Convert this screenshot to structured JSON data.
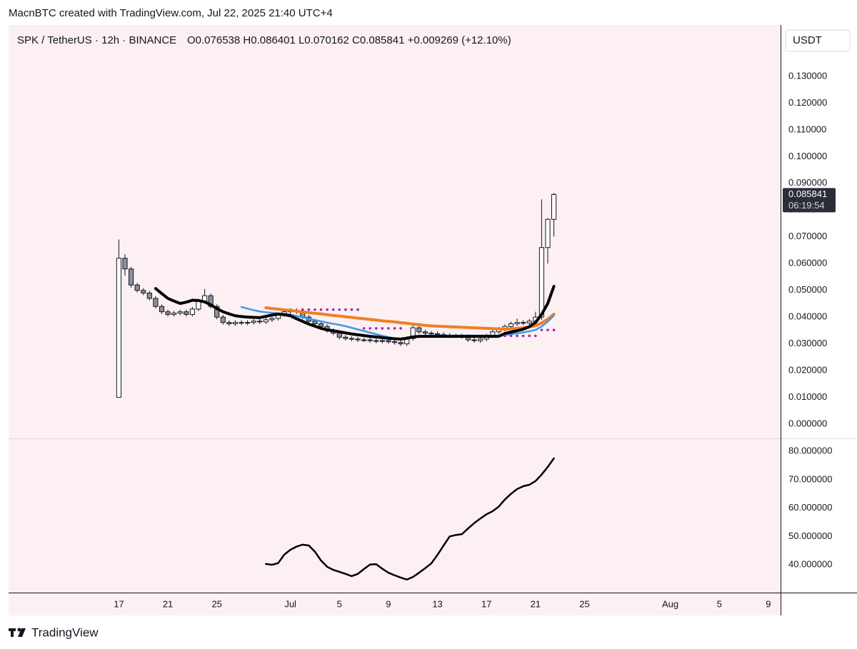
{
  "chart_data": [
    {
      "type": "candlestick",
      "header": "MacnBTC created with TradingView.com, Jul 22, 2025 21:40 UTC+4",
      "symbol": "SPK / TetherUS · 12h · BINANCE",
      "ohlc": "O0.076538  H0.086401  L0.070162  C0.085841  +0.009269 (+12.10%)",
      "currency": "USDT",
      "watermark": "TradingView",
      "countdown": "06:19:54",
      "start": "2025-06-17",
      "interval": "12h",
      "candles": {
        "open": [
          0.01,
          0.062,
          0.058,
          0.052,
          0.05,
          0.049,
          0.047,
          0.044,
          0.042,
          0.041,
          0.0415,
          0.042,
          0.041,
          0.043,
          0.046,
          0.048,
          0.044,
          0.04,
          0.038,
          0.0375,
          0.038,
          0.0378,
          0.038,
          0.0385,
          0.0382,
          0.039,
          0.0395,
          0.041,
          0.042,
          0.0425,
          0.042,
          0.04,
          0.0385,
          0.0375,
          0.0365,
          0.035,
          0.034,
          0.0325,
          0.032,
          0.0318,
          0.0315,
          0.0315,
          0.0312,
          0.031,
          0.0312,
          0.0308,
          0.0305,
          0.03,
          0.032,
          0.036,
          0.0345,
          0.034,
          0.0338,
          0.0335,
          0.0332,
          0.033,
          0.033,
          0.0328,
          0.0315,
          0.0312,
          0.0318,
          0.033,
          0.0345,
          0.0355,
          0.0365,
          0.0375,
          0.038,
          0.0378,
          0.0385,
          0.04,
          0.066,
          0.076538
        ],
        "high": [
          0.069,
          0.0635,
          0.0588,
          0.0528,
          0.0508,
          0.0498,
          0.0478,
          0.0448,
          0.0428,
          0.0423,
          0.0428,
          0.0428,
          0.0438,
          0.0468,
          0.0505,
          0.0488,
          0.0448,
          0.0408,
          0.0388,
          0.0388,
          0.0388,
          0.0388,
          0.0393,
          0.0393,
          0.0398,
          0.0403,
          0.0418,
          0.0428,
          0.0433,
          0.0433,
          0.0428,
          0.0408,
          0.0393,
          0.0383,
          0.0373,
          0.0358,
          0.0348,
          0.0333,
          0.0328,
          0.0326,
          0.0323,
          0.0323,
          0.032,
          0.032,
          0.032,
          0.0316,
          0.0313,
          0.0328,
          0.0375,
          0.0368,
          0.0353,
          0.0348,
          0.0346,
          0.0343,
          0.034,
          0.0338,
          0.0338,
          0.0336,
          0.0323,
          0.0326,
          0.0338,
          0.0353,
          0.0363,
          0.0373,
          0.0383,
          0.0395,
          0.0388,
          0.0393,
          0.042,
          0.084,
          0.077,
          0.086401
        ],
        "low": [
          0.01,
          0.0555,
          0.051,
          0.0492,
          0.0482,
          0.0462,
          0.0432,
          0.0412,
          0.0402,
          0.0402,
          0.0407,
          0.0402,
          0.0402,
          0.0422,
          0.0452,
          0.0432,
          0.0392,
          0.0372,
          0.0367,
          0.0367,
          0.037,
          0.037,
          0.0372,
          0.0374,
          0.0374,
          0.0382,
          0.0387,
          0.0402,
          0.0412,
          0.0412,
          0.0392,
          0.0377,
          0.0367,
          0.0357,
          0.0342,
          0.0332,
          0.0317,
          0.0312,
          0.031,
          0.0307,
          0.0307,
          0.0304,
          0.0302,
          0.0302,
          0.03,
          0.0297,
          0.0292,
          0.0292,
          0.0312,
          0.0337,
          0.0332,
          0.033,
          0.0327,
          0.0324,
          0.0322,
          0.0322,
          0.032,
          0.0307,
          0.0304,
          0.0304,
          0.031,
          0.0322,
          0.0337,
          0.0347,
          0.0357,
          0.0367,
          0.037,
          0.037,
          0.0377,
          0.039,
          0.06,
          0.070162
        ],
        "close": [
          0.062,
          0.058,
          0.052,
          0.05,
          0.049,
          0.047,
          0.044,
          0.042,
          0.041,
          0.0415,
          0.042,
          0.041,
          0.043,
          0.046,
          0.048,
          0.044,
          0.04,
          0.038,
          0.0375,
          0.038,
          0.0378,
          0.038,
          0.0385,
          0.0382,
          0.039,
          0.0395,
          0.041,
          0.042,
          0.0425,
          0.042,
          0.04,
          0.0385,
          0.0375,
          0.0365,
          0.035,
          0.034,
          0.0325,
          0.032,
          0.0318,
          0.0315,
          0.0315,
          0.0312,
          0.031,
          0.0312,
          0.0308,
          0.0305,
          0.03,
          0.032,
          0.036,
          0.0345,
          0.034,
          0.0338,
          0.0335,
          0.0332,
          0.033,
          0.033,
          0.0328,
          0.0315,
          0.0312,
          0.0318,
          0.033,
          0.0345,
          0.0355,
          0.0365,
          0.0375,
          0.038,
          0.0378,
          0.0385,
          0.04,
          0.066,
          0.076538,
          0.085841
        ]
      },
      "up_color": "#ffffff",
      "down_color": "#8e8f9c",
      "series": [
        {
          "type": "line",
          "color": "#f07f24",
          "width": 4,
          "values": [
            null,
            null,
            null,
            null,
            null,
            null,
            null,
            null,
            null,
            null,
            null,
            null,
            null,
            null,
            null,
            null,
            null,
            null,
            null,
            null,
            null,
            null,
            null,
            null,
            0.0435,
            0.0432,
            0.043,
            0.0427,
            0.0425,
            0.0422,
            0.0419,
            0.0417,
            0.0414,
            0.0412,
            0.0409,
            0.0406,
            0.0404,
            0.0401,
            0.0399,
            0.0396,
            0.0394,
            0.0391,
            0.0389,
            0.0386,
            0.0384,
            0.0382,
            0.0379,
            0.0377,
            0.0374,
            0.0372,
            0.0369,
            0.0367,
            0.0366,
            0.0365,
            0.0364,
            0.0363,
            0.0362,
            0.0361,
            0.036,
            0.0359,
            0.0358,
            0.0357,
            0.0356,
            0.0355,
            0.0356,
            0.0358,
            0.036,
            0.0363,
            0.0368,
            0.0378,
            0.0392,
            0.0411
          ]
        },
        {
          "type": "line",
          "color": "#3d9be9",
          "width": 2.5,
          "values": [
            null,
            null,
            null,
            null,
            null,
            null,
            null,
            null,
            null,
            null,
            null,
            null,
            null,
            null,
            null,
            null,
            null,
            null,
            null,
            null,
            0.0438,
            0.0432,
            0.0426,
            0.0421,
            0.0418,
            0.0416,
            0.0414,
            0.0412,
            0.0409,
            0.0404,
            0.0399,
            0.0394,
            0.0389,
            0.0384,
            0.0379,
            0.0375,
            0.0371,
            0.0366,
            0.036,
            0.0354,
            0.0348,
            0.0342,
            0.0336,
            0.033,
            0.0325,
            0.0321,
            0.0318,
            0.032,
            0.0325,
            0.0329,
            0.0331,
            0.0331,
            0.0331,
            0.0331,
            0.0331,
            0.0331,
            0.0331,
            0.0331,
            0.0331,
            0.0331,
            0.0331,
            0.0331,
            0.0331,
            0.0333,
            0.0336,
            0.0339,
            0.0343,
            0.0347,
            0.0352,
            0.0365,
            0.0383,
            0.0406
          ]
        },
        {
          "type": "line",
          "color": "#000000",
          "width": 4,
          "values": [
            null,
            null,
            null,
            null,
            null,
            null,
            0.0507,
            0.0488,
            0.047,
            0.046,
            0.0451,
            0.0456,
            0.0463,
            0.0462,
            0.0457,
            0.0446,
            0.0432,
            0.042,
            0.0412,
            0.0405,
            0.0402,
            0.04,
            0.0399,
            0.0398,
            0.0403,
            0.0408,
            0.0411,
            0.0409,
            0.0405,
            0.0394,
            0.0384,
            0.0374,
            0.0366,
            0.0358,
            0.0352,
            0.0349,
            0.0345,
            0.0341,
            0.0337,
            0.0334,
            0.0331,
            0.0328,
            0.0326,
            0.0323,
            0.0321,
            0.0319,
            0.0318,
            0.0321,
            0.0326,
            0.0328,
            0.0328,
            0.0328,
            0.0328,
            0.0328,
            0.0328,
            0.0328,
            0.0328,
            0.0328,
            0.0328,
            0.0328,
            0.0328,
            0.0328,
            0.0328,
            0.0339,
            0.0344,
            0.0349,
            0.0355,
            0.0364,
            0.038,
            0.041,
            0.0451,
            0.0515
          ]
        },
        {
          "type": "dots",
          "color": "#9c27b0",
          "values": [
            null,
            null,
            null,
            null,
            null,
            null,
            null,
            null,
            null,
            null,
            null,
            null,
            null,
            null,
            null,
            null,
            null,
            null,
            null,
            null,
            null,
            null,
            null,
            null,
            null,
            null,
            null,
            null,
            null,
            null,
            0.0428,
            0.0428,
            0.0428,
            0.0428,
            0.0428,
            0.0428,
            0.0428,
            0.0428,
            0.0428,
            0.0428,
            0.0358,
            0.0358,
            0.0358,
            0.0358,
            0.0358,
            0.0358,
            0.0358,
            null,
            null,
            null,
            null,
            null,
            null,
            null,
            null,
            null,
            null,
            null,
            null,
            null,
            null,
            null,
            null,
            0.033,
            0.033,
            0.033,
            0.033,
            0.033,
            0.033,
            0.0352,
            0.0352,
            0.0352
          ]
        }
      ],
      "xlim": [
        "2025-06-08",
        "2025-08-10"
      ],
      "xticks": [
        {
          "value": "2025-06-17",
          "label": "17"
        },
        {
          "value": "2025-06-21",
          "label": "21"
        },
        {
          "value": "2025-06-25",
          "label": "25"
        },
        {
          "value": "2025-07-01",
          "label": "Jul"
        },
        {
          "value": "2025-07-05",
          "label": "5"
        },
        {
          "value": "2025-07-09",
          "label": "9"
        },
        {
          "value": "2025-07-13",
          "label": "13"
        },
        {
          "value": "2025-07-17",
          "label": "17"
        },
        {
          "value": "2025-07-21",
          "label": "21"
        },
        {
          "value": "2025-07-25",
          "label": "25"
        },
        {
          "value": "2025-08-01",
          "label": "Aug"
        },
        {
          "value": "2025-08-05",
          "label": "5"
        },
        {
          "value": "2025-08-09",
          "label": "9"
        }
      ],
      "ylim": [
        -0.0048,
        0.1492
      ],
      "yticks": [
        {
          "value": 0,
          "label": "0.000000"
        },
        {
          "value": 0.01,
          "label": "0.010000"
        },
        {
          "value": 0.02,
          "label": "0.020000"
        },
        {
          "value": 0.03,
          "label": "0.030000"
        },
        {
          "value": 0.04,
          "label": "0.040000"
        },
        {
          "value": 0.05,
          "label": "0.050000"
        },
        {
          "value": 0.06,
          "label": "0.060000"
        },
        {
          "value": 0.07,
          "label": "0.070000"
        },
        {
          "value": 0.08,
          "label": "0.080000"
        },
        {
          "value": 0.09,
          "label": "0.090000"
        },
        {
          "value": 0.1,
          "label": "0.100000"
        },
        {
          "value": 0.11,
          "label": "0.110000"
        },
        {
          "value": 0.12,
          "label": "0.120000"
        },
        {
          "value": 0.13,
          "label": "0.130000"
        }
      ],
      "grid": false
    },
    {
      "type": "line",
      "color": "#000000",
      "values": [
        null,
        null,
        null,
        null,
        null,
        null,
        null,
        null,
        null,
        null,
        null,
        null,
        null,
        null,
        null,
        null,
        null,
        null,
        null,
        null,
        null,
        null,
        null,
        null,
        40.3,
        40.0,
        40.6,
        43.6,
        45.3,
        46.4,
        47.1,
        46.8,
        44.6,
        41.5,
        39.3,
        38.2,
        37.5,
        36.8,
        36.0,
        36.8,
        38.5,
        40.1,
        40.2,
        38.6,
        37.2,
        36.3,
        35.5,
        34.8,
        35.7,
        37.2,
        38.8,
        40.5,
        43.5,
        46.8,
        50.0,
        50.5,
        50.8,
        52.8,
        54.7,
        56.3,
        57.8,
        58.9,
        60.5,
        63.0,
        65.0,
        66.7,
        67.7,
        68.2,
        69.5,
        71.8,
        74.5,
        77.5
      ],
      "ylim": [
        30.2,
        83.8
      ],
      "yticks": [
        {
          "value": 40,
          "label": "40.000000"
        },
        {
          "value": 50,
          "label": "50.000000"
        },
        {
          "value": 60,
          "label": "60.000000"
        },
        {
          "value": 70,
          "label": "70.000000"
        },
        {
          "value": 80,
          "label": "80.000000"
        }
      ],
      "grid": false
    }
  ]
}
